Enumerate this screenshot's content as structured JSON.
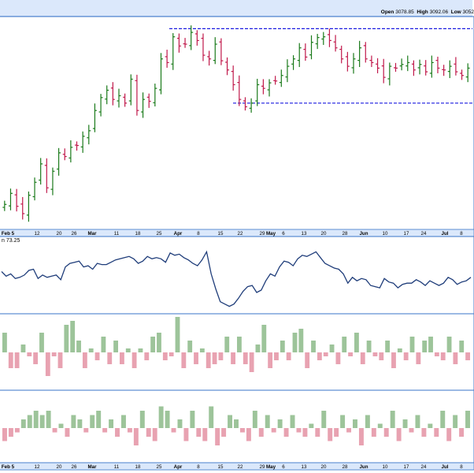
{
  "header": {
    "open_label": "Open",
    "open_value": "3078.85",
    "high_label": "High",
    "high_value": "3092.06",
    "low_label": "Low",
    "low_value": "3052"
  },
  "indicator": {
    "label": "n 73.25"
  },
  "colors": {
    "up": "#1a7a1a",
    "down": "#c0184a",
    "line": "#1f3d7a",
    "pos_bar": "#9dc49a",
    "neg_bar": "#e8a2b1",
    "frame": "#3a76c9",
    "top_bar": "#dbe8fb",
    "guide": "#1b1be0"
  },
  "chart_data": [
    {
      "type": "ohlc",
      "title": "",
      "x_ticks": [
        "Feb 5",
        "12",
        "20",
        "26",
        "Mar",
        "11",
        "18",
        "25",
        "Apr",
        "8",
        "15",
        "22",
        "29",
        "May",
        "6",
        "13",
        "20",
        "28",
        "Jun",
        "10",
        "17",
        "24",
        "Jul",
        "8"
      ],
      "series_close": [
        2615,
        2645,
        2610,
        2590,
        2640,
        2675,
        2725,
        2660,
        2705,
        2755,
        2745,
        2770,
        2775,
        2800,
        2815,
        2870,
        2905,
        2925,
        2900,
        2910,
        2890,
        2955,
        2870,
        2900,
        2895,
        2930,
        3010,
        3000,
        3070,
        3045,
        3050,
        3082,
        3060,
        3020,
        3010,
        3050,
        3005,
        2980,
        2940,
        2900,
        2880,
        2890,
        2940,
        2930,
        2945,
        2950,
        2965,
        2990,
        3010,
        3040,
        3015,
        3055,
        3068,
        3070,
        3060,
        3040,
        3010,
        2990,
        3010,
        3040,
        3010,
        3000,
        2985,
        2960,
        2990,
        2985,
        2995,
        3000,
        2980,
        2995,
        2975,
        3000,
        2985,
        2980,
        2990,
        2975,
        2965,
        2985
      ],
      "guide_high": 3092,
      "guide_low": 2890
    },
    {
      "type": "line",
      "title": "",
      "values": [
        50,
        46,
        48,
        44,
        45,
        47,
        51,
        52,
        44,
        47,
        45,
        46,
        47,
        43,
        54,
        57,
        58,
        59,
        54,
        55,
        52,
        57,
        56,
        56,
        58,
        60,
        61,
        62,
        63,
        61,
        57,
        59,
        63,
        61,
        62,
        61,
        58,
        66,
        64,
        65,
        62,
        60,
        57,
        55,
        60,
        67,
        48,
        35,
        24,
        22,
        20,
        22,
        27,
        33,
        37,
        38,
        32,
        34,
        42,
        48,
        46,
        54,
        59,
        58,
        55,
        61,
        64,
        63,
        65,
        67,
        62,
        57,
        55,
        53,
        52,
        48,
        40,
        45,
        42,
        44,
        43,
        38,
        37,
        36,
        44,
        41,
        40,
        36,
        39,
        40,
        40,
        43,
        41,
        38,
        42,
        40,
        38,
        40,
        45,
        43,
        39,
        41,
        42,
        45
      ]
    },
    {
      "type": "bar",
      "title": "",
      "values": [
        5,
        -4,
        -4,
        2,
        -1,
        -3,
        5,
        -6,
        -1,
        -4,
        7,
        8,
        3,
        -4,
        1,
        -2,
        4,
        -3,
        3,
        -3,
        1,
        -4,
        1,
        -2,
        4,
        5,
        -2,
        -1,
        9,
        -4,
        3,
        -3,
        1,
        -4,
        -3,
        -2,
        4,
        -3,
        4,
        -3,
        -5,
        2,
        7,
        -4,
        -2,
        3,
        -2,
        5,
        6,
        -4,
        3,
        -2,
        -1,
        2,
        -3,
        4,
        -1,
        5,
        -3,
        3,
        -1,
        -2,
        3,
        -4,
        1,
        -2,
        4,
        -3,
        3,
        4,
        -1,
        -2,
        4,
        -3,
        3,
        -2
      ]
    },
    {
      "type": "bar",
      "title": "",
      "values": [
        -3,
        -2,
        -1,
        2,
        3,
        4,
        3,
        4,
        -1,
        1,
        -2,
        3,
        2,
        -1,
        3,
        4,
        -1,
        2,
        -2,
        3,
        -1,
        -4,
        4,
        -2,
        -3,
        5,
        4,
        -1,
        2,
        -3,
        4,
        -2,
        -3,
        5,
        -4,
        -2,
        3,
        2,
        -1,
        -3,
        4,
        -2,
        3,
        -1,
        2,
        -2,
        3,
        -1,
        -2,
        1,
        -2,
        4,
        -3,
        -2,
        3,
        -1,
        2,
        -4,
        3,
        -2,
        1,
        -2,
        4,
        -3,
        2,
        -1,
        3,
        -2,
        1,
        -2,
        4,
        -3,
        3,
        -2,
        4
      ]
    }
  ]
}
